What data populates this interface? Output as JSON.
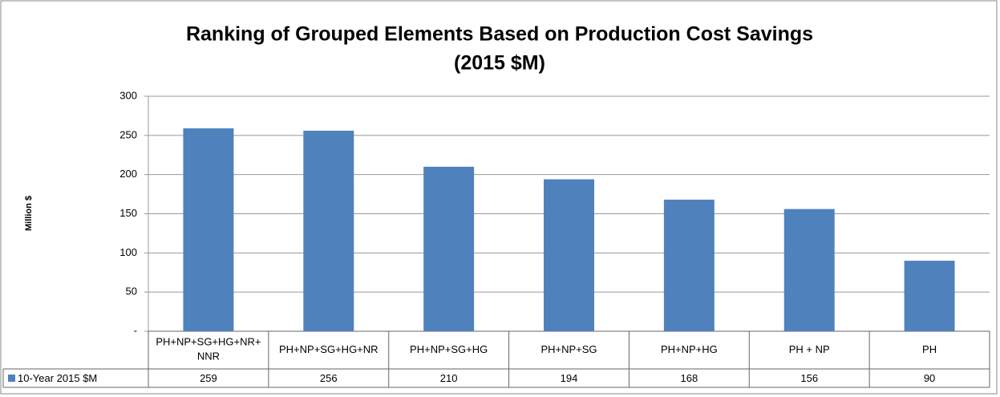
{
  "chart_data": {
    "type": "bar",
    "title": [
      "Ranking of Grouped Elements Based on Production Cost Savings",
      "(2015 $M)"
    ],
    "y_axis_label": "Million $",
    "categories": [
      "PH+NP+SG+HG+NR+NNR",
      "PH+NP+SG+HG+NR",
      "PH+NP+SG+HG",
      "PH+NP+SG",
      "PH+NP+HG",
      "PH + NP",
      "PH"
    ],
    "series": [
      {
        "name": "10-Year 2015 $M",
        "color": "#4f81bd",
        "values": [
          259,
          256,
          210,
          194,
          168,
          156,
          90
        ]
      }
    ],
    "ylim": [
      0,
      300
    ],
    "yticks": [
      {
        "value": 0,
        "label": "-"
      },
      50,
      100,
      150,
      200,
      250,
      300
    ],
    "grid": true
  }
}
